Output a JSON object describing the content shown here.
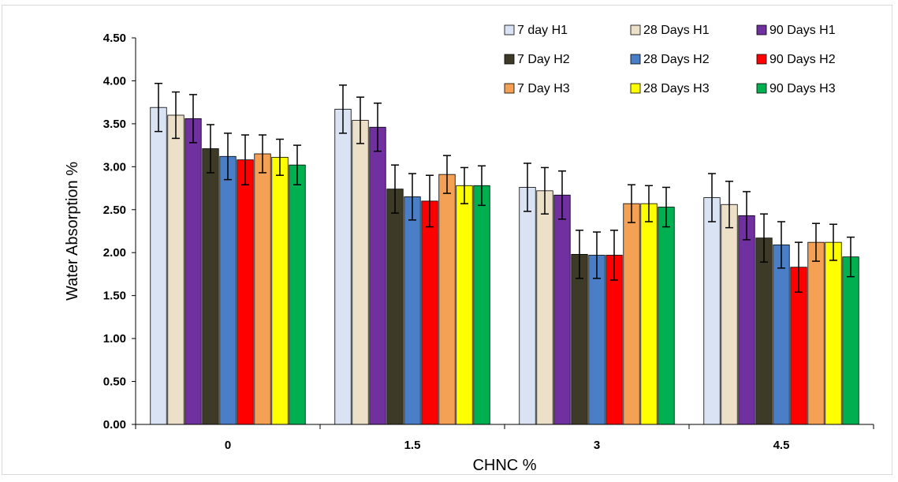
{
  "chart_data": {
    "type": "bar",
    "xlabel": "CHNC %",
    "ylabel": "Water Absorption %",
    "categories": [
      "0",
      "1.5",
      "3",
      "4.5"
    ],
    "ylim": [
      0,
      4.5
    ],
    "yticks": [
      "0.00",
      "0.50",
      "1.00",
      "1.50",
      "2.00",
      "2.50",
      "3.00",
      "3.50",
      "4.00",
      "4.50"
    ],
    "grid": false,
    "legend_position": "top-right",
    "error_bars": true,
    "series": [
      {
        "name": "7 day H1",
        "color": "#dae3f3",
        "values": [
          3.69,
          3.67,
          2.76,
          2.64
        ],
        "errors": [
          0.28,
          0.28,
          0.28,
          0.28
        ]
      },
      {
        "name": "28 Days H1",
        "color": "#ede0c8",
        "values": [
          3.6,
          3.54,
          2.72,
          2.56
        ],
        "errors": [
          0.27,
          0.27,
          0.27,
          0.27
        ]
      },
      {
        "name": "90 Days H1",
        "color": "#7030a0",
        "values": [
          3.56,
          3.46,
          2.67,
          2.43
        ],
        "errors": [
          0.28,
          0.28,
          0.28,
          0.28
        ]
      },
      {
        "name": "7 Day H2",
        "color": "#3d3b27",
        "values": [
          3.21,
          2.74,
          1.98,
          2.17
        ],
        "errors": [
          0.28,
          0.28,
          0.28,
          0.28
        ]
      },
      {
        "name": "28 Days H2",
        "color": "#4a7ec6",
        "values": [
          3.12,
          2.65,
          1.97,
          2.09
        ],
        "errors": [
          0.27,
          0.27,
          0.27,
          0.27
        ]
      },
      {
        "name": "90 Days H2",
        "color": "#ff0000",
        "values": [
          3.08,
          2.6,
          1.97,
          1.83
        ],
        "errors": [
          0.29,
          0.3,
          0.29,
          0.29
        ]
      },
      {
        "name": "7 Day H3",
        "color": "#f4a055",
        "values": [
          3.15,
          2.91,
          2.57,
          2.12
        ],
        "errors": [
          0.22,
          0.22,
          0.22,
          0.22
        ]
      },
      {
        "name": "28 Days H3",
        "color": "#ffff00",
        "values": [
          3.11,
          2.78,
          2.57,
          2.12
        ],
        "errors": [
          0.21,
          0.21,
          0.21,
          0.21
        ]
      },
      {
        "name": "90 Days H3",
        "color": "#00b050",
        "values": [
          3.02,
          2.78,
          2.53,
          1.95
        ],
        "errors": [
          0.23,
          0.23,
          0.23,
          0.23
        ]
      }
    ]
  }
}
